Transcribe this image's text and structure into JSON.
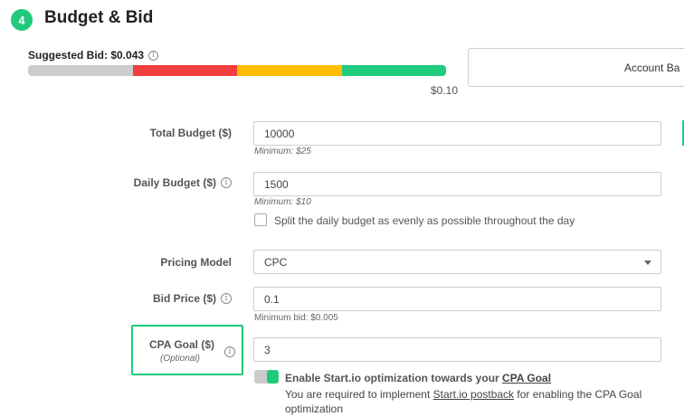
{
  "section": {
    "step": "4",
    "title": "Budget & Bid"
  },
  "bid_bar": {
    "suggested_label": "Suggested Bid: $0.043",
    "max_label": "$0.10",
    "segments": [
      {
        "color": "#cccccc",
        "fraction": 0.25
      },
      {
        "color": "#f03d3d",
        "fraction": 0.25
      },
      {
        "color": "#ffbf00",
        "fraction": 0.25
      },
      {
        "color": "#20cc7d",
        "fraction": 0.25
      }
    ]
  },
  "account_box": {
    "label": "Account Ba"
  },
  "total_budget": {
    "label": "Total Budget ($)",
    "value": "10000",
    "hint": "Minimum: $25"
  },
  "daily_budget": {
    "label": "Daily Budget ($)",
    "value": "1500",
    "hint": "Minimum: $10",
    "split_label": "Split the daily budget as evenly as possible throughout the day"
  },
  "pricing_model": {
    "label": "Pricing Model",
    "value": "CPC"
  },
  "bid_price": {
    "label": "Bid Price ($)",
    "value": "0.1",
    "hint": "Minimum bid: $0.005"
  },
  "cpa_goal": {
    "label": "CPA Goal ($)",
    "sublabel": "(Optional)",
    "value": "3",
    "toggle_text_prefix": "Enable Start.io optimization towards your",
    "toggle_link": "CPA Goal",
    "req_prefix": "You are required to implement",
    "req_link": "Start.io postback",
    "req_suffix": "for enabling the CPA Goal optimization"
  },
  "colors": {
    "accent": "#22c97a"
  },
  "icons": {
    "info": "info-icon",
    "dropdown": "chevron-down-icon"
  }
}
